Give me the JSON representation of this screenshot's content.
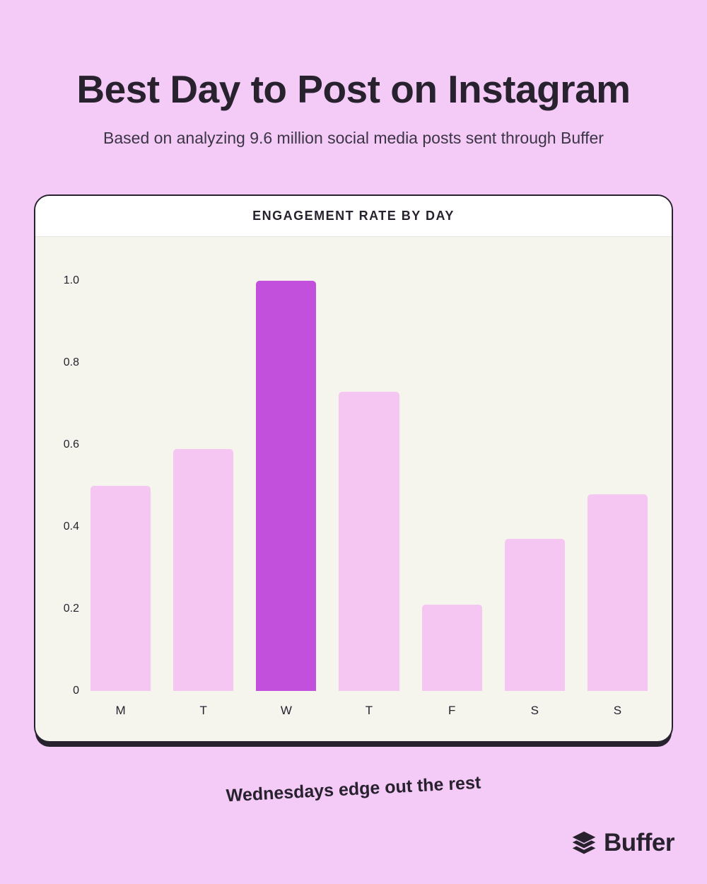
{
  "header": {
    "title": "Best Day to Post on Instagram",
    "subtitle": "Based on analyzing 9.6 million social media posts sent through Buffer"
  },
  "chart_data": {
    "type": "bar",
    "title": "ENGAGEMENT RATE BY DAY",
    "categories": [
      "M",
      "T",
      "W",
      "T",
      "F",
      "S",
      "S"
    ],
    "values": [
      0.5,
      0.59,
      1.0,
      0.73,
      0.21,
      0.37,
      0.48
    ],
    "highlight_index": 2,
    "highlight_category": "W",
    "xlabel": "",
    "ylabel": "",
    "ylim": [
      0,
      1.0
    ],
    "y_tick_labels": [
      "0",
      "0.2",
      "0.4",
      "0.6",
      "0.8",
      "1.0"
    ],
    "grid": false,
    "legend": "none"
  },
  "caption": "Wednesdays edge out the rest",
  "logo": {
    "text": "Buffer",
    "icon": "buffer-layers-icon"
  },
  "colors": {
    "page_bg": "#F4CAF7",
    "card_bg": "#F5F4ED",
    "card_header_bg": "#FFFFFF",
    "bar": "#F5C6F2",
    "bar_highlight": "#C250DC",
    "text_dark": "#28222F",
    "card_border": "#28222F"
  }
}
